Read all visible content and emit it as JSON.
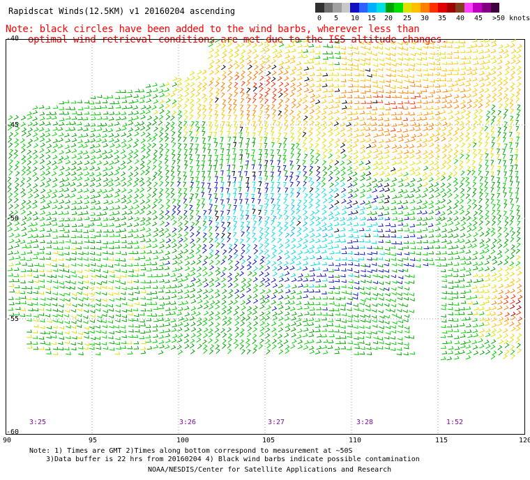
{
  "header": {
    "title": "Rapidscat Winds(12.5KM) v1 20160204 ascending",
    "note_line1": "Note: black circles have been added to the wind barbs, wherever less than",
    "note_line2": "optimal wind retrieval conditions are met due to the ISS altitude changes."
  },
  "legend": {
    "labels": [
      "0",
      "5",
      "10",
      "15",
      "20",
      "25",
      "30",
      "35",
      "40",
      "45",
      ">50 knots"
    ],
    "colors": [
      "#303030",
      "#707070",
      "#a0a0a0",
      "#c8c8c8",
      "#1010c0",
      "#3060ff",
      "#00b0ff",
      "#00e0e0",
      "#00a000",
      "#00e000",
      "#e0e000",
      "#ffc000",
      "#ff8000",
      "#ff3000",
      "#e00000",
      "#a00000",
      "#804020",
      "#ff40ff",
      "#c000c0",
      "#800080",
      "#400040"
    ]
  },
  "map": {
    "lat_labels": [
      "-40",
      "-45",
      "-50",
      "-55",
      "-60"
    ],
    "lon_labels": [
      "90",
      "95",
      "100",
      "105",
      "110",
      "115",
      "120"
    ],
    "time_labels": [
      "3:25",
      "3:26",
      "3:27",
      "3:28",
      "1:52"
    ]
  },
  "footer": {
    "line1": "Note: 1) Times are GMT 2)Times along bottom correspond to measurement at ~50S",
    "line2": "3)Data buffer is 22 hrs from 20160204 4) Black wind barbs indicate possible contamination",
    "line3": "NOAA/NESDIS/Center for Satellite Applications and Research"
  }
}
